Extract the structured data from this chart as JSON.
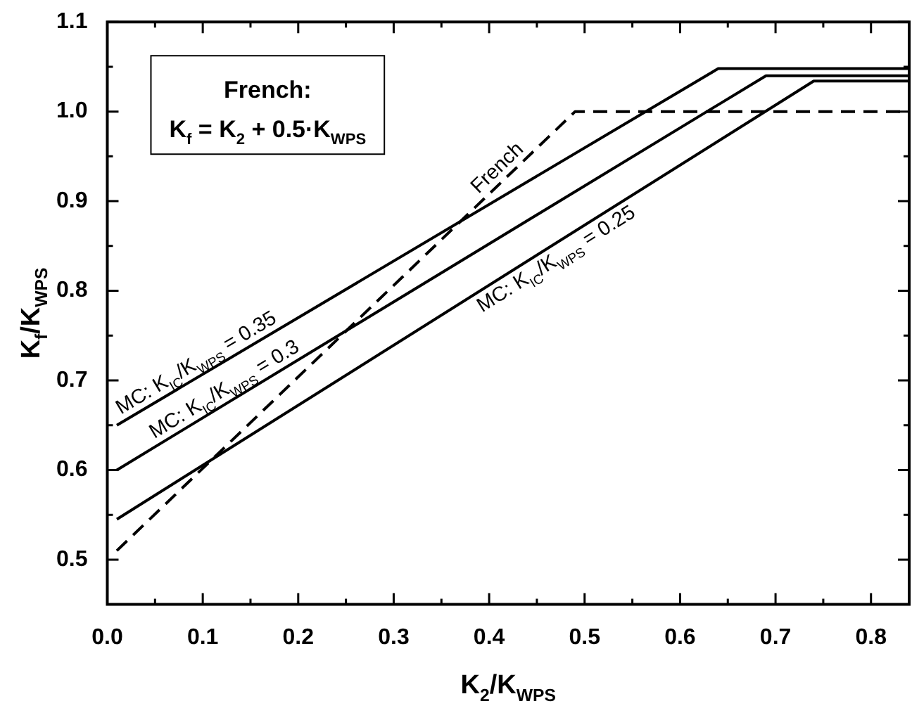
{
  "chart_data": {
    "type": "line",
    "xlabel": "K$_{2}$/K$_{WPS}$",
    "ylabel": "K$_{f}$/K$_{WPS}$",
    "xlim": [
      0,
      0.84
    ],
    "ylim": [
      0.45,
      1.1
    ],
    "xticks": [
      {
        "value": 0,
        "label": "0.0"
      },
      {
        "value": 0.05,
        "label": null
      },
      0.1,
      {
        "value": 0.15,
        "label": null
      },
      0.2,
      {
        "value": 0.25,
        "label": null
      },
      0.3,
      {
        "value": 0.35,
        "label": null
      },
      0.4,
      {
        "value": 0.45,
        "label": null
      },
      0.5,
      {
        "value": 0.55,
        "label": null
      },
      0.6,
      {
        "value": 0.65,
        "label": null
      },
      0.7,
      {
        "value": 0.75,
        "label": null
      },
      0.8
    ],
    "yticks": [
      {
        "value": 0.45,
        "label": null
      },
      0.5,
      {
        "value": 0.55,
        "label": null
      },
      0.6,
      {
        "value": 0.65,
        "label": null
      },
      0.7,
      {
        "value": 0.75,
        "label": null
      },
      0.8,
      {
        "value": 0.85,
        "label": null
      },
      0.9,
      {
        "value": 0.95,
        "label": null
      },
      {
        "value": 1.0,
        "label": "1.0"
      },
      {
        "value": 1.05,
        "label": null
      },
      1.1
    ],
    "grid": false,
    "legend": false,
    "marker": "none",
    "series": [
      {
        "name": "MC: K$_{IC}$/K$_{WPS}$ = 0.35",
        "color": "#000000",
        "line_style": "solid",
        "x": [
          0.01,
          0.64,
          0.84
        ],
        "values": [
          0.65,
          1.048,
          1.048
        ]
      },
      {
        "name": "MC: K$_{IC}$/K$_{WPS}$ = 0.3",
        "color": "#000000",
        "line_style": "solid",
        "x": [
          0.01,
          0.69,
          0.84
        ],
        "values": [
          0.6,
          1.04,
          1.04
        ]
      },
      {
        "name": "MC: K$_{IC}$/K$_{WPS}$ = 0.25",
        "color": "#000000",
        "line_style": "solid",
        "x": [
          0.01,
          0.74,
          0.84
        ],
        "values": [
          0.545,
          1.034,
          1.034
        ]
      },
      {
        "name": "French",
        "color": "#000000",
        "line_style": "dashed",
        "x": [
          0.01,
          0.49,
          0.84
        ],
        "values": [
          0.51,
          1.0,
          1.0
        ]
      }
    ],
    "annotations": [
      "French:",
      "K$_{f}$ = K$_{2}$ + 0.5·K$_{WPS}$"
    ]
  }
}
